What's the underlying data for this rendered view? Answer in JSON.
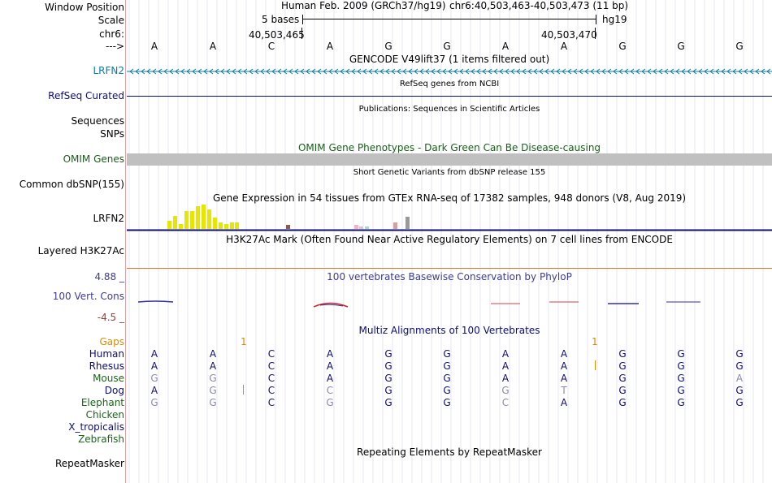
{
  "header": {
    "window_position_label": "Window Position",
    "scale_label": "Scale",
    "chrom_label": "chr6:",
    "arrow_label": "--->",
    "assembly": "Human Feb. 2009 (GRCh37/hg19)",
    "position": "chr6:40,503,463-40,503,473 (11 bp)",
    "scale_text": "5 bases",
    "db": "hg19",
    "coord_left": "40,503,465",
    "coord_right": "40,503,470"
  },
  "bases": [
    "A",
    "A",
    "C",
    "A",
    "G",
    "G",
    "A",
    "A",
    "G",
    "G",
    "G"
  ],
  "tracks": {
    "gencode": {
      "title": "GENCODE V49lift37 (1 items filtered out)",
      "label": "LRFN2"
    },
    "refseq": {
      "title": "RefSeq genes from NCBI",
      "label": "RefSeq Curated"
    },
    "pubs": {
      "title": "Publications: Sequences in Scientific Articles",
      "label1": "Sequences",
      "label2": "SNPs"
    },
    "omim": {
      "title": "OMIM Gene Phenotypes - Dark Green Can Be Disease-causing",
      "label": "OMIM Genes"
    },
    "dbsnp": {
      "title": "Short Genetic Variants from dbSNP release 155",
      "label": "Common dbSNP(155)"
    },
    "gtex": {
      "title": "Gene Expression in 54 tissues from GTEx RNA-seq of 17382 samples, 948 donors (V8, Aug 2019)",
      "label": "LRFN2"
    },
    "h3k27ac": {
      "title": "H3K27Ac Mark (Often Found Near Active Regulatory Elements) on 7 cell lines from ENCODE",
      "label": "Layered H3K27Ac"
    },
    "phylop": {
      "title": "100 vertebrates Basewise Conservation by PhyloP",
      "label": "100 Vert. Cons",
      "max": "4.88 _",
      "min": "-4.5 _"
    },
    "multiz": {
      "title": "Multiz Alignments of 100 Vertebrates"
    },
    "repeatmasker": {
      "title": "Repeating Elements by RepeatMasker",
      "label": "RepeatMasker"
    }
  },
  "alignment": {
    "gaps_label": "Gaps",
    "gap_markers": [
      "1",
      "1"
    ],
    "species": [
      {
        "name": "Human",
        "bases": [
          "A",
          "A",
          "C",
          "A",
          "G",
          "G",
          "A",
          "A",
          "G",
          "G",
          "G"
        ]
      },
      {
        "name": "Rhesus",
        "bases": [
          "A",
          "A",
          "C",
          "A",
          "G",
          "G",
          "A",
          "A",
          "G",
          "G",
          "G"
        ]
      },
      {
        "name": "Mouse",
        "bases": [
          "G",
          "G",
          "C",
          "A",
          "G",
          "G",
          "A",
          "A",
          "G",
          "G",
          "A"
        ]
      },
      {
        "name": "Dog",
        "bases": [
          "A",
          "G",
          "C",
          "C",
          "G",
          "G",
          "G",
          "T",
          "G",
          "G",
          "G"
        ]
      },
      {
        "name": "Elephant",
        "bases": [
          "G",
          "G",
          "C",
          "G",
          "G",
          "G",
          "C",
          "A",
          "G",
          "G",
          "G"
        ]
      },
      {
        "name": "Chicken",
        "bases": []
      },
      {
        "name": "X_tropicalis",
        "bases": []
      },
      {
        "name": "Zebrafish",
        "bases": []
      }
    ]
  },
  "colors": {
    "gencode": "#0a7cad",
    "refseq": "#0c0c78",
    "omim": "#1a5e1a",
    "phylop": "#3c3c96",
    "gaps": "#e08a00",
    "human": "#0c0c78",
    "green": "#196619"
  }
}
